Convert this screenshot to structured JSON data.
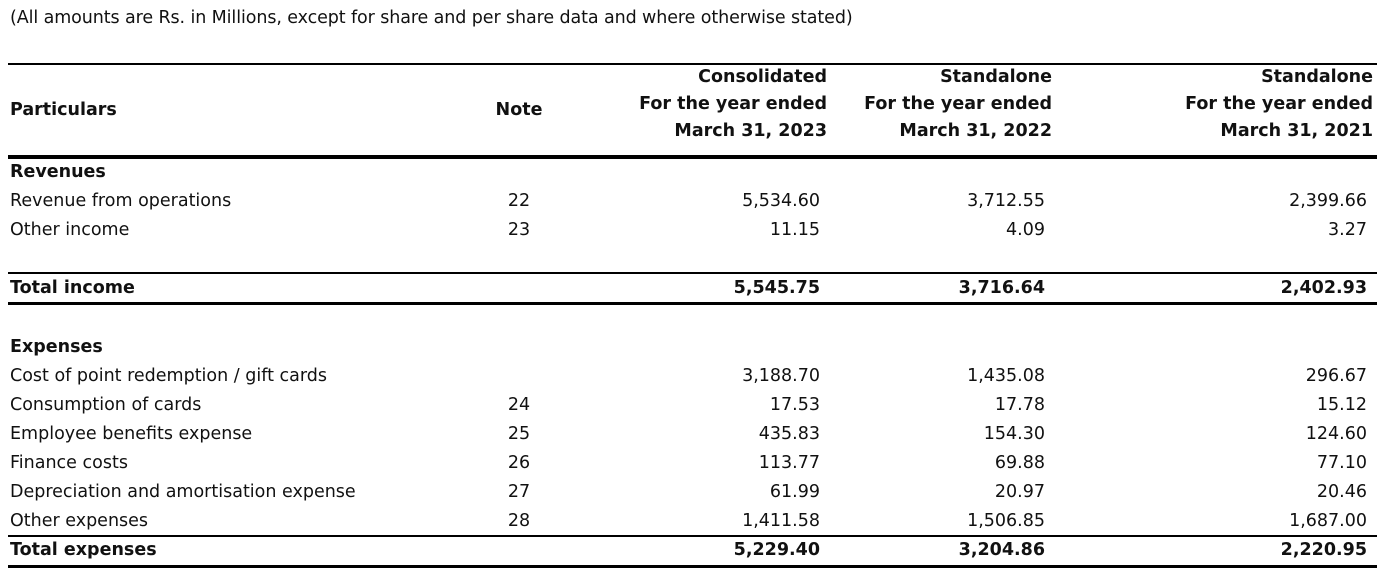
{
  "caption": "(All amounts are Rs. in Millions, except for share and per share data and where otherwise stated)",
  "header": {
    "particulars": "Particulars",
    "note": "Note",
    "col1": {
      "line1": "Consolidated",
      "line2": "For the year ended",
      "line3": "March 31, 2023"
    },
    "col2": {
      "line1": "Standalone",
      "line2": "For the year ended",
      "line3": "March 31, 2022"
    },
    "col3": {
      "line1": "Standalone",
      "line2": "For the year ended",
      "line3": "March 31, 2021"
    }
  },
  "rows": [
    {
      "label": "Revenues",
      "note": "",
      "v1": "",
      "v2": "",
      "v3": ""
    },
    {
      "label": "Revenue from operations",
      "note": "22",
      "v1": "5,534.60",
      "v2": "3,712.55",
      "v3": "2,399.66"
    },
    {
      "label": "Other income",
      "note": "23",
      "v1": "11.15",
      "v2": "4.09",
      "v3": "3.27"
    },
    {
      "label": "Total income",
      "note": "",
      "v1": "5,545.75",
      "v2": "3,716.64",
      "v3": "2,402.93"
    },
    {
      "label": "Expenses",
      "note": "",
      "v1": "",
      "v2": "",
      "v3": ""
    },
    {
      "label": "Cost of point redemption / gift cards",
      "note": "",
      "v1": "3,188.70",
      "v2": "1,435.08",
      "v3": "296.67"
    },
    {
      "label": "Consumption of cards",
      "note": "24",
      "v1": "17.53",
      "v2": "17.78",
      "v3": "15.12"
    },
    {
      "label": "Employee benefits expense",
      "note": "25",
      "v1": "435.83",
      "v2": "154.30",
      "v3": "124.60"
    },
    {
      "label": "Finance costs",
      "note": "26",
      "v1": "113.77",
      "v2": "69.88",
      "v3": "77.10"
    },
    {
      "label": "Depreciation and amortisation expense",
      "note": "27",
      "v1": "61.99",
      "v2": "20.97",
      "v3": "20.46"
    },
    {
      "label": "Other expenses",
      "note": "28",
      "v1": "1,411.58",
      "v2": "1,506.85",
      "v3": "1,687.00"
    },
    {
      "label": "Total expenses",
      "note": "",
      "v1": "5,229.40",
      "v2": "3,204.86",
      "v3": "2,220.95"
    }
  ]
}
